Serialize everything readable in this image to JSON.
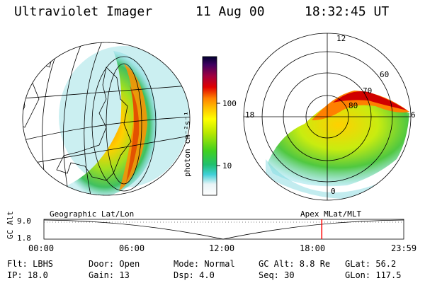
{
  "header": {
    "title": "Ultraviolet Imager",
    "date": "11 Aug 00",
    "time": "18:32:45 UT"
  },
  "left_panel": {
    "caption": "Geographic Lat/Lon"
  },
  "right_panel": {
    "caption": "Apex MLat/MLT",
    "mlt_labels": [
      "12",
      "18",
      "6",
      "0"
    ],
    "lat_labels": [
      "60",
      "70",
      "80"
    ]
  },
  "colorbar": {
    "unit_label": "photon cm⁻²s⁻¹",
    "ticks": [
      "100",
      "10"
    ]
  },
  "altitude_plot": {
    "axis_label": "GC Alt",
    "y_ticks": [
      "9.0",
      "1.8"
    ],
    "x_ticks": [
      "00:00",
      "06:00",
      "12:00",
      "18:00",
      "23:59"
    ],
    "marker_time": "18:32",
    "marker_color": "#ff0000"
  },
  "footer": {
    "row1": [
      "Flt: LBHS",
      "Door: Open",
      "Mode: Normal",
      "GC Alt: 8.8 Re",
      "GLat:  56.2"
    ],
    "row2": [
      "IP: 18.0",
      "Gain: 13",
      "Dsp:    4.0",
      "Seq: 30",
      "GLon: 117.5"
    ]
  }
}
